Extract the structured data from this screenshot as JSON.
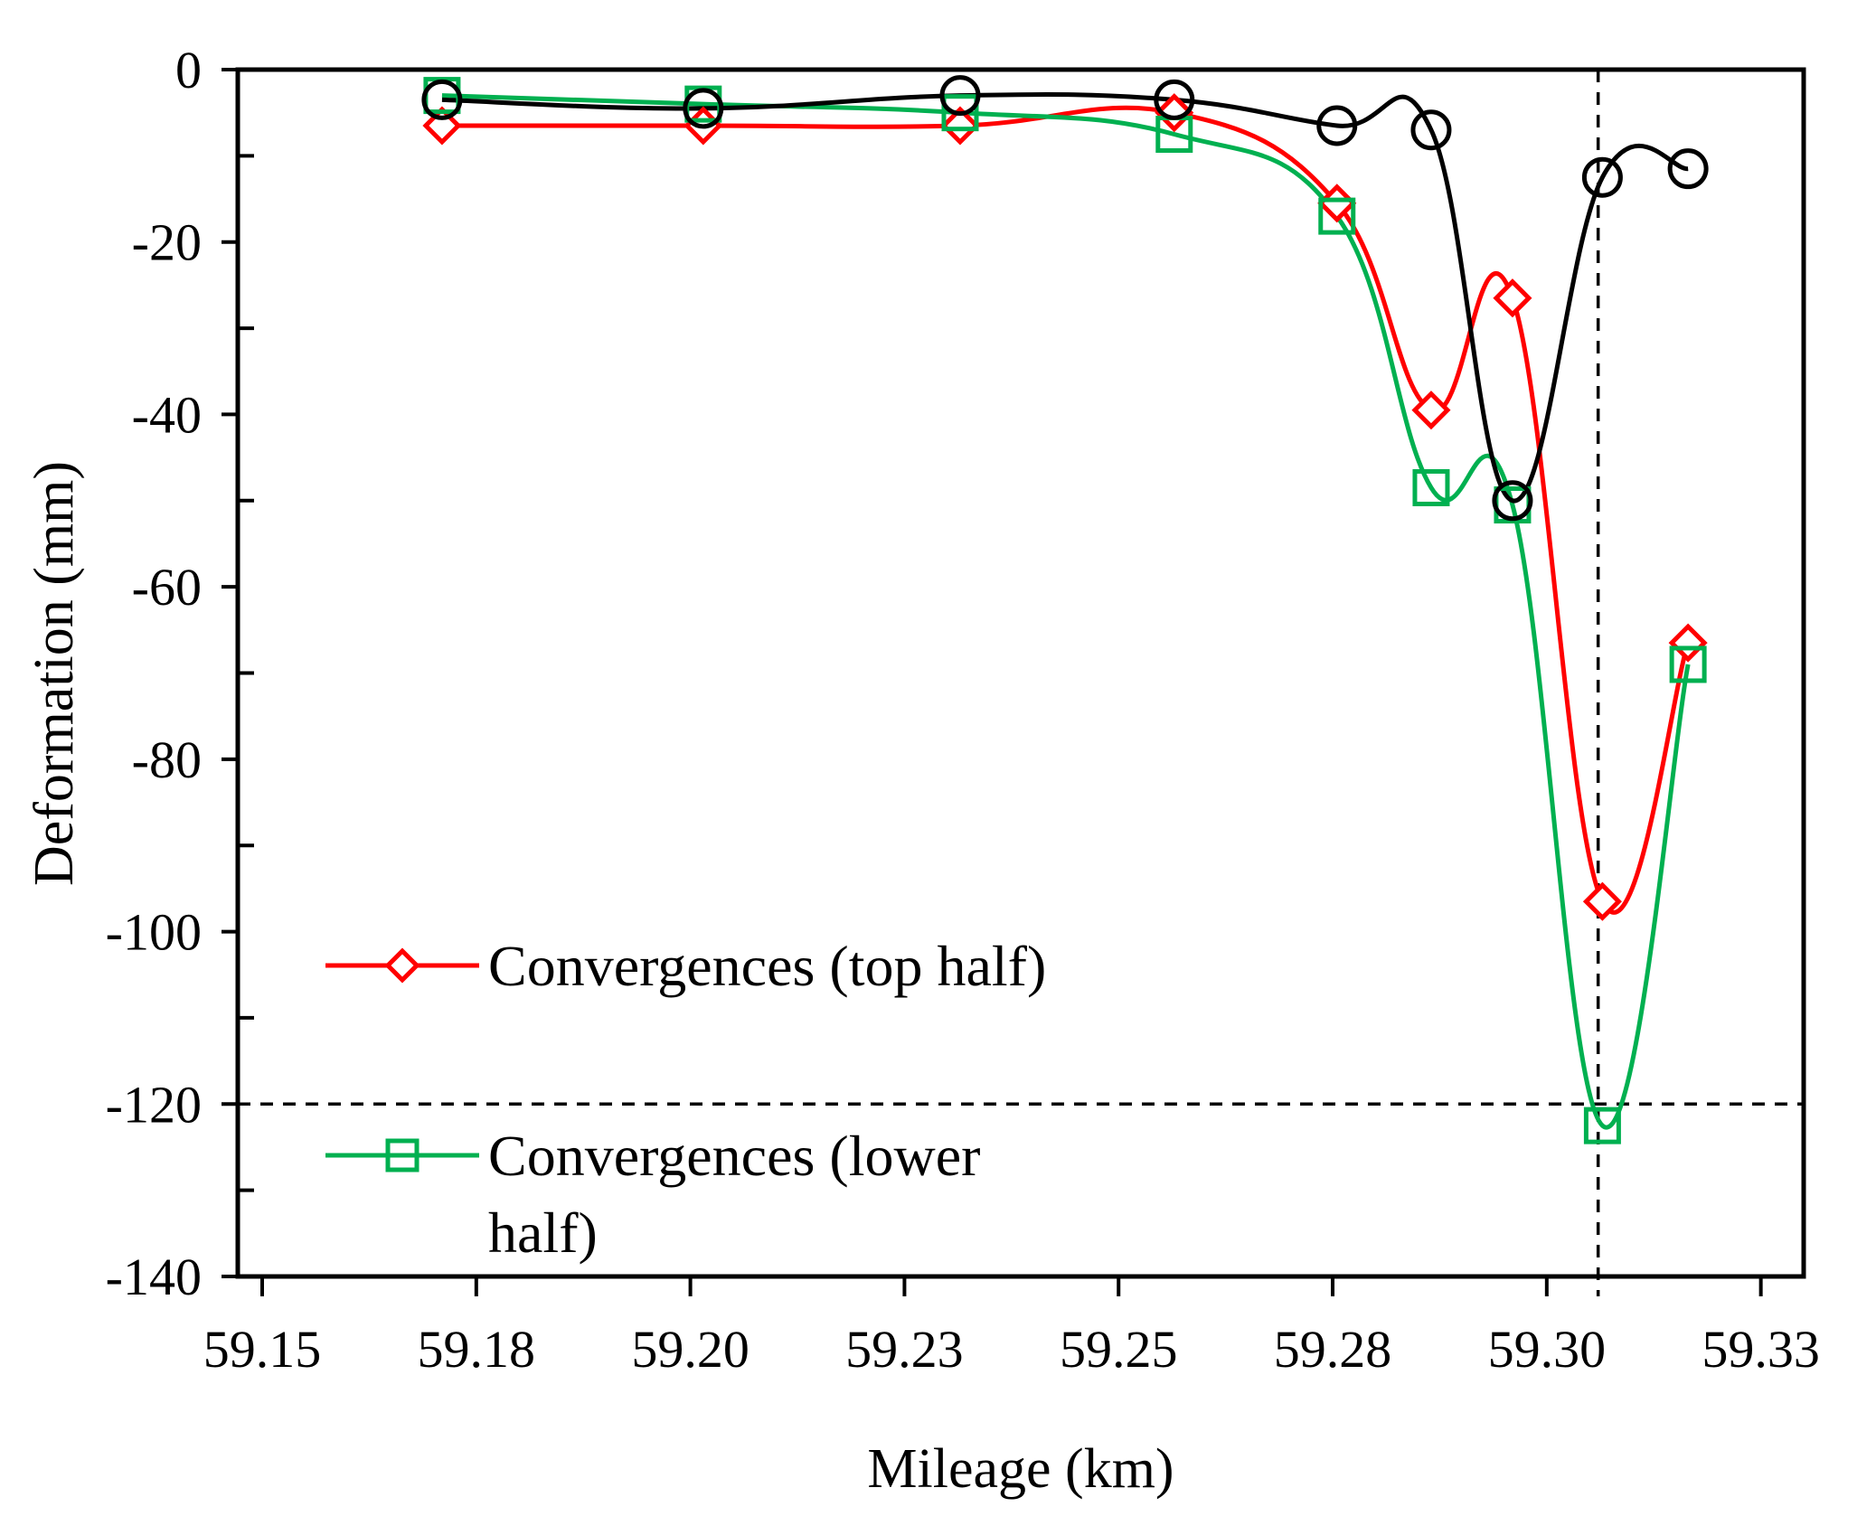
{
  "chart_data": {
    "type": "line",
    "title": "",
    "xlabel": "Mileage (km)",
    "ylabel": "Deformation (mm)",
    "xlim": [
      59.15,
      59.33
    ],
    "ylim": [
      -140,
      0
    ],
    "x_ticks": [
      59.15,
      59.175,
      59.2,
      59.225,
      59.25,
      59.275,
      59.3,
      59.325
    ],
    "x_tick_labels": [
      "59.15",
      "59.18",
      "59.20",
      "59.23",
      "59.25",
      "59.28",
      "59.30",
      "59.33"
    ],
    "y_ticks": [
      0,
      -20,
      -40,
      -60,
      -80,
      -100,
      -120,
      -140
    ],
    "y_tick_labels": [
      "0",
      "-20",
      "-40",
      "-60",
      "-80",
      "-100",
      "-120",
      "-140"
    ],
    "grid": false,
    "series": [
      {
        "name": "Convergences (top  half)",
        "color": "#ff0000",
        "marker": "diamond",
        "x": [
          59.171,
          59.2015,
          59.2315,
          59.2565,
          59.2755,
          59.2865,
          59.296,
          59.3065,
          59.3165
        ],
        "y": [
          -6.5,
          -6.5,
          -6.5,
          -5.0,
          -15.5,
          -39.5,
          -26.5,
          -96.5,
          -66.5
        ]
      },
      {
        "name": "Convergences (lower half)",
        "color": "#00b050",
        "marker": "square",
        "x": [
          59.171,
          59.2015,
          59.2315,
          59.2565,
          59.2755,
          59.2865,
          59.296,
          59.3065,
          59.3165
        ],
        "y": [
          -3.0,
          -4.0,
          -5.0,
          -7.5,
          -17.0,
          -48.5,
          -50.5,
          -122.5,
          -69.0
        ]
      },
      {
        "name": "",
        "color": "#000000",
        "marker": "circle",
        "x": [
          59.171,
          59.2015,
          59.2315,
          59.2565,
          59.2755,
          59.2865,
          59.296,
          59.3065,
          59.3165
        ],
        "y": [
          -3.5,
          -4.5,
          -3.0,
          -3.5,
          -6.5,
          -7.0,
          -50.0,
          -12.5,
          -11.5
        ]
      }
    ],
    "reference_lines": [
      {
        "orientation": "horizontal",
        "value": -120,
        "style": "dashed",
        "color": "#000000"
      },
      {
        "orientation": "vertical",
        "value": 59.306,
        "style": "dashed",
        "color": "#000000"
      }
    ],
    "legend": {
      "position": "bottom-left",
      "entries": [
        {
          "label": "Convergences (top  half)",
          "color": "#ff0000",
          "marker": "diamond",
          "lines": [
            "Convergences (top  half)"
          ]
        },
        {
          "label": "Convergences (lower half)",
          "color": "#00b050",
          "marker": "square",
          "lines": [
            "Convergences (lower",
            "half)"
          ]
        }
      ]
    }
  }
}
